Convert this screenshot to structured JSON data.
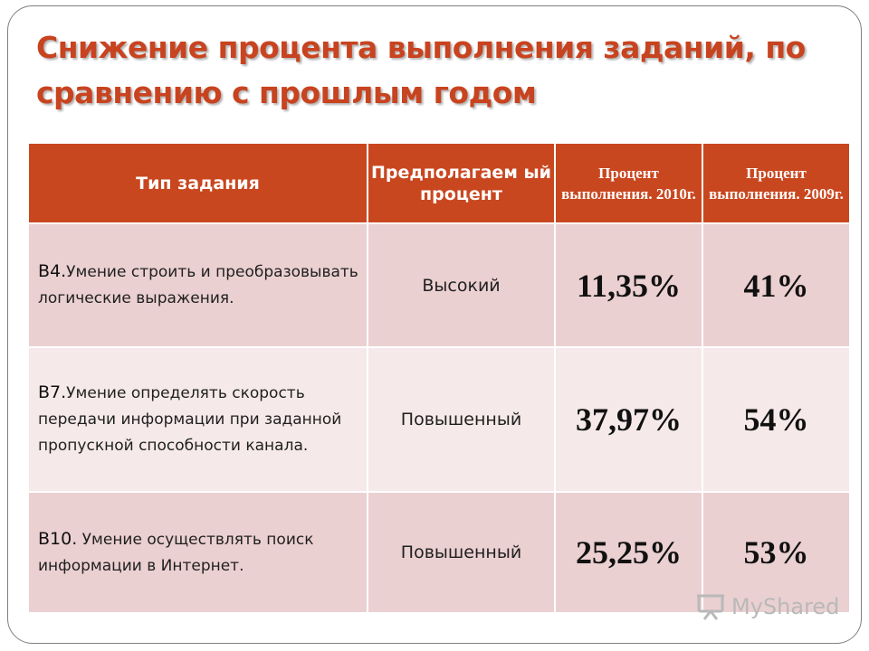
{
  "title": "Снижение процента выполнения заданий, по сравнению с прошлым годом",
  "table": {
    "headers": [
      "Тип задания",
      "Предполагаем ый процент",
      "Процент выполнения. 2010г.",
      "Процент выполнения. 2009г."
    ],
    "rows": [
      {
        "code": "В4.",
        "text": "Умение строить и преобразовывать логические выражения.",
        "level": "Высокий",
        "pct_2010": "11,35%",
        "pct_2009": "41%"
      },
      {
        "code": "В7.",
        "text": "Умение определять скорость передачи информации при заданной пропускной способности канала.",
        "level": "Повышенный",
        "pct_2010": "37,97%",
        "pct_2009": "54%"
      },
      {
        "code": "В10.",
        "text": " Умение осуществлять поиск информации в Интернет.",
        "level": "Повышенный",
        "pct_2010": "25,25%",
        "pct_2009": "53%"
      }
    ]
  },
  "colors": {
    "title": "#c8431f",
    "header_bg": "#c9471f",
    "row_dark": "#ebd0d1",
    "row_light": "#f5e9e9"
  },
  "watermark": {
    "text": "MyShared",
    "icon": "presentation-board-icon"
  }
}
